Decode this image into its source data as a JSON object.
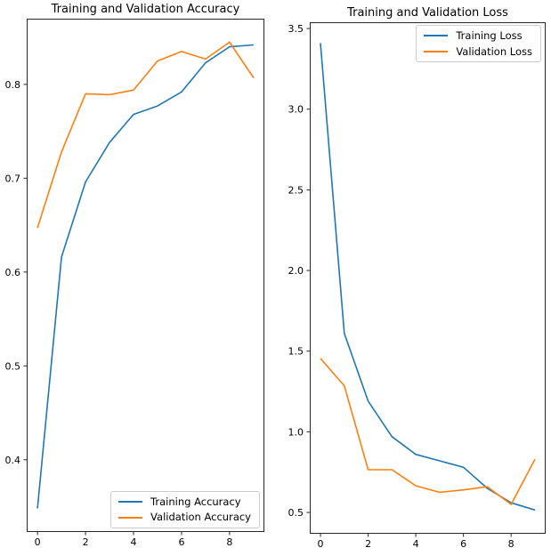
{
  "figure": {
    "background": "#ffffff",
    "text_color": "#000000",
    "spine_color": "#262626",
    "legend_border_color": "#cccccc"
  },
  "chart_data": [
    {
      "id": "accuracy",
      "type": "line",
      "title": "Training and Validation Accuracy",
      "x": [
        0,
        1,
        2,
        3,
        4,
        5,
        6,
        7,
        8,
        9
      ],
      "series": [
        {
          "name": "Training Accuracy",
          "color": "#1f77b4",
          "values": [
            0.348,
            0.616,
            0.696,
            0.738,
            0.768,
            0.777,
            0.792,
            0.823,
            0.84,
            0.842
          ]
        },
        {
          "name": "Validation Accuracy",
          "color": "#ff7f0e",
          "values": [
            0.647,
            0.728,
            0.79,
            0.789,
            0.794,
            0.825,
            0.835,
            0.827,
            0.845,
            0.807
          ]
        }
      ],
      "xticks": [
        0,
        2,
        4,
        6,
        8
      ],
      "xtick_labels": [
        "0",
        "2",
        "4",
        "6",
        "8"
      ],
      "yticks": [
        0.4,
        0.5,
        0.6,
        0.7,
        0.8
      ],
      "ytick_labels": [
        "0.4",
        "0.5",
        "0.6",
        "0.7",
        "0.8"
      ],
      "xlim": [
        -0.45,
        9.45
      ],
      "ylim": [
        0.323,
        0.87
      ],
      "grid": false,
      "legend": {
        "position": "lower right",
        "entries": [
          "Training Accuracy",
          "Validation Accuracy"
        ]
      }
    },
    {
      "id": "loss",
      "type": "line",
      "title": "Training and Validation Loss",
      "x": [
        0,
        1,
        2,
        3,
        4,
        5,
        6,
        7,
        8,
        9
      ],
      "series": [
        {
          "name": "Training Loss",
          "color": "#1f77b4",
          "values": [
            3.41,
            1.61,
            1.19,
            0.97,
            0.86,
            0.82,
            0.78,
            0.65,
            0.56,
            0.515
          ]
        },
        {
          "name": "Validation Loss",
          "color": "#ff7f0e",
          "values": [
            1.455,
            1.285,
            0.765,
            0.765,
            0.665,
            0.625,
            0.64,
            0.66,
            0.55,
            0.83
          ]
        }
      ],
      "xticks": [
        0,
        2,
        4,
        6,
        8
      ],
      "xtick_labels": [
        "0",
        "2",
        "4",
        "6",
        "8"
      ],
      "yticks": [
        0.5,
        1.0,
        1.5,
        2.0,
        2.5,
        3.0,
        3.5
      ],
      "ytick_labels": [
        "0.5",
        "1.0",
        "1.5",
        "2.0",
        "2.5",
        "3.0",
        "3.5"
      ],
      "xlim": [
        -0.45,
        9.45
      ],
      "ylim": [
        0.368,
        3.539
      ],
      "grid": false,
      "legend": {
        "position": "upper right",
        "entries": [
          "Training Loss",
          "Validation Loss"
        ]
      }
    }
  ]
}
